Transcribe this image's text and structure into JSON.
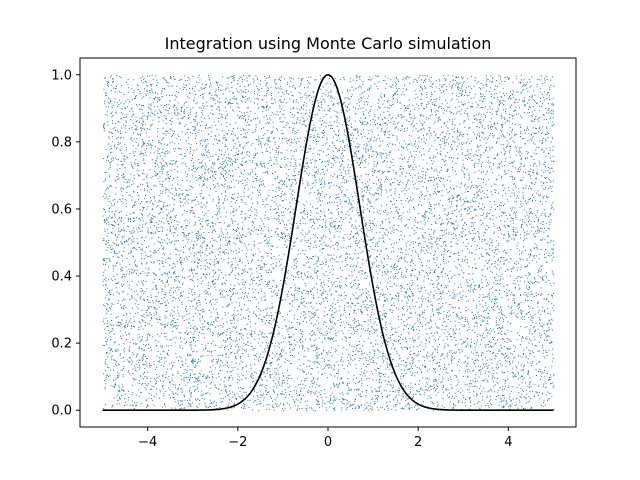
{
  "chart_data": {
    "type": "scatter",
    "title": "Integration using Monte Carlo simulation",
    "xlabel": "",
    "ylabel": "",
    "xlim": [
      -5.5,
      5.5
    ],
    "ylim": [
      -0.05,
      1.05
    ],
    "x_ticks": [
      -4,
      -2,
      0,
      2,
      4
    ],
    "x_tick_labels": [
      "−4",
      "−2",
      "0",
      "2",
      "4"
    ],
    "y_ticks": [
      0.0,
      0.2,
      0.4,
      0.6,
      0.8,
      1.0
    ],
    "y_tick_labels": [
      "0.0",
      "0.2",
      "0.4",
      "0.6",
      "0.8",
      "1.0"
    ],
    "grid": false,
    "legend": "none",
    "series": [
      {
        "kind": "random-samples",
        "x_range": [
          -5,
          5
        ],
        "y_range": [
          0,
          1
        ],
        "color": "#1f77b4"
      },
      {
        "kind": "curve",
        "function": "exp(-x^2)",
        "x_range": [
          -5,
          5
        ],
        "color": "#000000"
      }
    ]
  }
}
